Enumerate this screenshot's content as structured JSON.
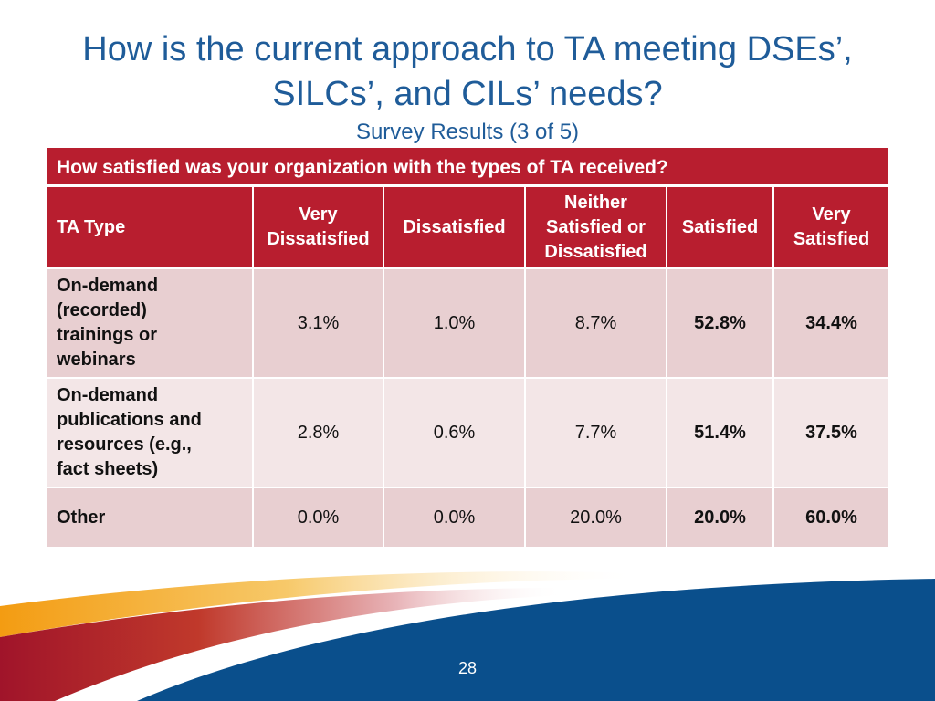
{
  "slide": {
    "title_line1": "How is the current approach to TA meeting DSEs’,",
    "title_line2": "SILCs’, and CILs’ needs?",
    "subtitle": "Survey Results (3 of 5)",
    "question": "How satisfied was your organization with the types of TA received?",
    "page_number": "28"
  },
  "table": {
    "headers": [
      [
        "TA Type"
      ],
      [
        "Very",
        "Dissatisfied"
      ],
      [
        "Dissatisfied"
      ],
      [
        "Neither",
        "Satisfied or",
        "Dissatisfied"
      ],
      [
        "Satisfied"
      ],
      [
        "Very",
        "Satisfied"
      ]
    ],
    "rows": [
      {
        "label": [
          "On-demand",
          "(recorded)",
          "trainings or",
          "webinars"
        ],
        "values": [
          "3.1%",
          "1.0%",
          "8.7%",
          "52.8%",
          "34.4%"
        ]
      },
      {
        "label": [
          "On-demand",
          "publications and",
          "resources (e.g.,",
          "fact sheets)"
        ],
        "values": [
          "2.8%",
          "0.6%",
          "7.7%",
          "51.4%",
          "37.5%"
        ]
      },
      {
        "label": [
          "Other"
        ],
        "values": [
          "0.0%",
          "0.0%",
          "20.0%",
          "20.0%",
          "60.0%"
        ]
      }
    ]
  },
  "colors": {
    "title": "#1f5c99",
    "header_red": "#b81e2f",
    "row_dark": "#e8cfd1",
    "row_light": "#f3e6e7",
    "swoosh_blue": "#0a4f8c",
    "swoosh_orange": "#f5a623"
  }
}
